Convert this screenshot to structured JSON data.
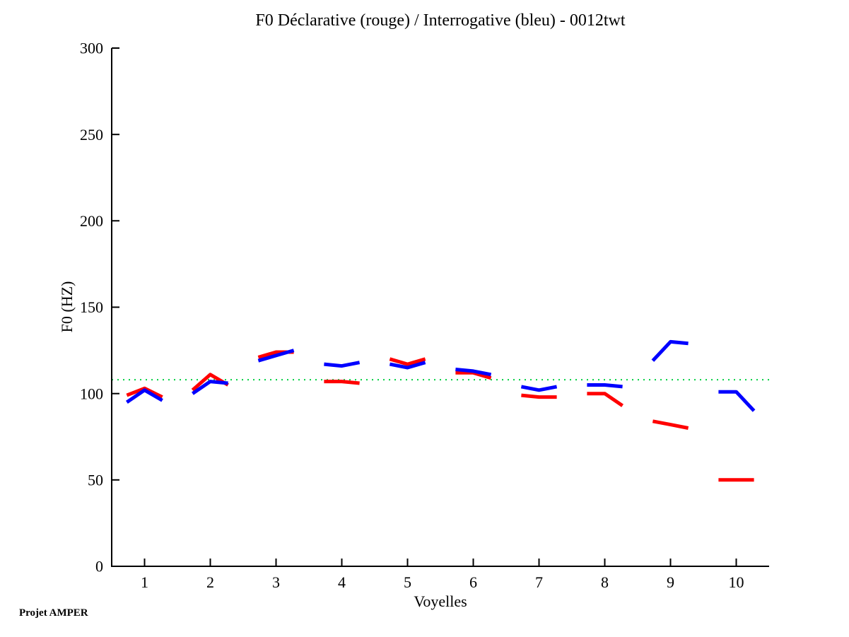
{
  "page": {
    "background": "#FFFFFF",
    "text_color": "#000000"
  },
  "footer": {
    "label": "Projet AMPER"
  },
  "chart_data": {
    "type": "line",
    "title": "F0 Déclarative (rouge) / Interrogative (bleu) - 0012twt",
    "xlabel": "Voyelles",
    "ylabel": "F0 (HZ)",
    "xlim": [
      0.5,
      10.5
    ],
    "ylim": [
      0,
      300
    ],
    "x_ticks": [
      1,
      2,
      3,
      4,
      5,
      6,
      7,
      8,
      9,
      10
    ],
    "y_ticks": [
      0,
      50,
      100,
      150,
      200,
      250,
      300
    ],
    "grid": false,
    "legend_position": "none",
    "legend_note": "rouge = Déclarative (red), bleu = Interrogative (blue), per title",
    "reference_line": {
      "y": 108,
      "color": "#00D040",
      "style": "dotted"
    },
    "categories": [
      1,
      2,
      3,
      4,
      5,
      6,
      7,
      8,
      9,
      10
    ],
    "segment_dx": [
      -0.27,
      0,
      0.27
    ],
    "series": [
      {
        "name": "Déclarative (rouge)",
        "color": "#FF0000",
        "values": [
          [
            99,
            103,
            98
          ],
          [
            102,
            111,
            105
          ],
          [
            121,
            124,
            124
          ],
          [
            107,
            107,
            106
          ],
          [
            120,
            117,
            120
          ],
          [
            112,
            112,
            109
          ],
          [
            99,
            98,
            98
          ],
          [
            100,
            100,
            93
          ],
          [
            84,
            82,
            80
          ],
          [
            50,
            50,
            50
          ]
        ]
      },
      {
        "name": "Interrogative (bleu)",
        "color": "#0000FF",
        "values": [
          [
            95,
            102,
            96
          ],
          [
            100,
            107,
            106
          ],
          [
            119,
            122,
            125
          ],
          [
            117,
            116,
            118
          ],
          [
            117,
            115,
            118
          ],
          [
            114,
            113,
            111
          ],
          [
            104,
            102,
            104
          ],
          [
            105,
            105,
            104
          ],
          [
            119,
            130,
            129
          ],
          [
            101,
            101,
            90
          ]
        ]
      }
    ]
  }
}
